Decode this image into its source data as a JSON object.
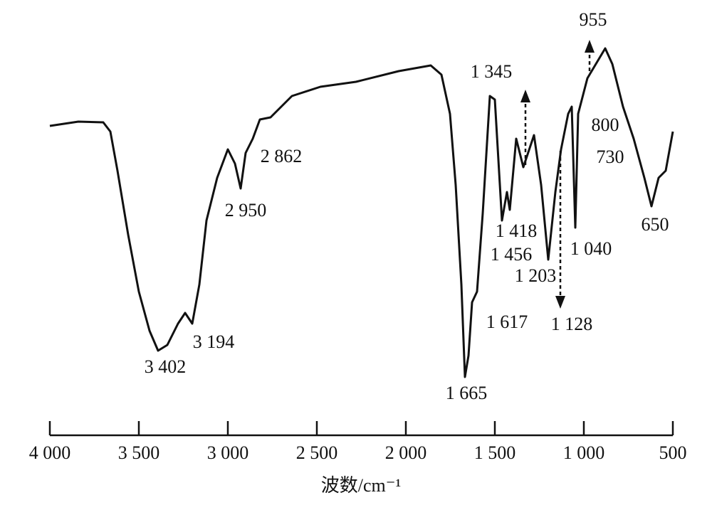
{
  "chart_data": {
    "type": "line",
    "x_label": "波数/cm⁻¹",
    "xlim": [
      4000,
      500
    ],
    "xticks": [
      {
        "value": 4000,
        "label": "4 000"
      },
      {
        "value": 3500,
        "label": "3 500"
      },
      {
        "value": 3000,
        "label": "3 000"
      },
      {
        "value": 2500,
        "label": "2 500"
      },
      {
        "value": 2000,
        "label": "2 000"
      },
      {
        "value": 1500,
        "label": "1 500"
      },
      {
        "value": 1000,
        "label": "1 000"
      },
      500
    ],
    "ylim": [
      0,
      100
    ],
    "series": [
      {
        "color": "#111111",
        "x": [
          4000,
          3840,
          3700,
          3660,
          3620,
          3560,
          3500,
          3440,
          3392,
          3340,
          3280,
          3240,
          3200,
          3160,
          3120,
          3060,
          3000,
          2960,
          2928,
          2900,
          2860,
          2820,
          2760,
          2640,
          2480,
          2280,
          2040,
          1860,
          1800,
          1752,
          1720,
          1688,
          1668,
          1648,
          1628,
          1600,
          1568,
          1528,
          1500,
          1460,
          1432,
          1416,
          1380,
          1340,
          1280,
          1240,
          1200,
          1160,
          1128,
          1088,
          1068,
          1048,
          1032,
          980,
          880,
          840,
          780,
          720,
          660,
          620,
          580,
          540,
          500
        ],
        "values": [
          76.6,
          77.8,
          77.6,
          75,
          64,
          46,
          30,
          19,
          13.4,
          15,
          21,
          24,
          21,
          32,
          50,
          62,
          70,
          66,
          59,
          69,
          73,
          78.4,
          79,
          85,
          87.6,
          89,
          92,
          93.6,
          91,
          80,
          60,
          32,
          6,
          12,
          27,
          30,
          52,
          85,
          84,
          50,
          58,
          53,
          73,
          65,
          74,
          60,
          39,
          58,
          70,
          80,
          82,
          48,
          80,
          90,
          98.4,
          94,
          82,
          73,
          62,
          54,
          62,
          64,
          75
        ]
      }
    ],
    "annotations": [
      {
        "label": "3 402",
        "value": 3402
      },
      {
        "label": "3 194",
        "value": 3194
      },
      {
        "label": "2 950",
        "value": 2950
      },
      {
        "label": "2 862",
        "value": 2862
      },
      {
        "label": "1 665",
        "value": 1665
      },
      {
        "label": "1 617",
        "value": 1617
      },
      {
        "label": "1 456",
        "value": 1456
      },
      {
        "label": "1 418",
        "value": 1418
      },
      {
        "label": "1 203",
        "value": 1203
      },
      {
        "label": "1 128",
        "value": 1128
      },
      {
        "label": "1 040",
        "value": 1040
      },
      {
        "label": "1 345",
        "value": 1345
      },
      {
        "label": "955",
        "value": 955
      },
      {
        "label": "800",
        "value": 800
      },
      {
        "label": "730",
        "value": 730
      },
      {
        "label": "650",
        "value": 650
      }
    ]
  }
}
